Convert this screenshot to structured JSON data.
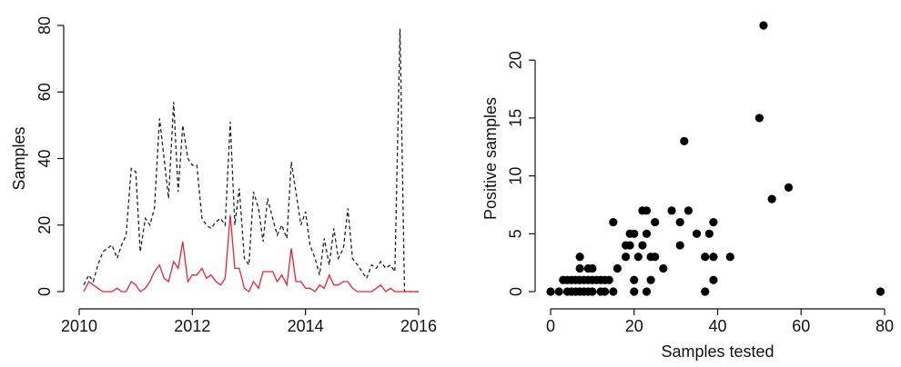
{
  "chart_data": [
    {
      "type": "line",
      "ylabel": "Samples",
      "xlim": [
        2010,
        2016
      ],
      "xticks": [
        2010,
        2012,
        2014,
        2016
      ],
      "ylim": [
        0,
        80
      ],
      "yticks": [
        0,
        20,
        40,
        60,
        80
      ],
      "x": [
        2010.08,
        2010.17,
        2010.25,
        2010.33,
        2010.42,
        2010.5,
        2010.58,
        2010.67,
        2010.75,
        2010.83,
        2010.92,
        2011.0,
        2011.08,
        2011.17,
        2011.25,
        2011.33,
        2011.42,
        2011.5,
        2011.58,
        2011.67,
        2011.75,
        2011.83,
        2011.92,
        2012.0,
        2012.08,
        2012.17,
        2012.25,
        2012.33,
        2012.42,
        2012.5,
        2012.58,
        2012.67,
        2012.75,
        2012.83,
        2012.92,
        2013.0,
        2013.08,
        2013.17,
        2013.25,
        2013.33,
        2013.42,
        2013.5,
        2013.58,
        2013.67,
        2013.75,
        2013.83,
        2013.92,
        2014.0,
        2014.08,
        2014.17,
        2014.25,
        2014.33,
        2014.42,
        2014.5,
        2014.58,
        2014.67,
        2014.75,
        2014.83,
        2014.92,
        2015.0,
        2015.08,
        2015.17,
        2015.25,
        2015.33,
        2015.42,
        2015.5,
        2015.58,
        2015.67,
        2015.75,
        2015.83,
        2015.92,
        2016.0
      ],
      "series": [
        {
          "color": "#222222",
          "linestyle": "dashed",
          "values": [
            2,
            5,
            3,
            8,
            12,
            13,
            14,
            10,
            14,
            17,
            37,
            36,
            12,
            22,
            20,
            25,
            52,
            40,
            28,
            57,
            30,
            50,
            40,
            38,
            38,
            22,
            20,
            19,
            21,
            22,
            20,
            51,
            20,
            31,
            10,
            8,
            30,
            25,
            15,
            28,
            22,
            17,
            20,
            16,
            39,
            30,
            20,
            24,
            14,
            10,
            5,
            16,
            8,
            19,
            10,
            13,
            25,
            10,
            8,
            6,
            4,
            8,
            7,
            9,
            7,
            8,
            6,
            79,
            0,
            0,
            0,
            0
          ]
        },
        {
          "color": "#ee2233",
          "linestyle": "solid",
          "values": [
            0,
            3,
            2,
            1,
            0,
            0,
            0,
            1,
            0,
            0,
            3,
            2,
            0,
            1,
            3,
            6,
            8,
            4,
            3,
            9,
            7,
            15,
            3,
            5,
            5,
            7,
            4,
            5,
            3,
            2,
            4,
            23,
            7,
            7,
            1,
            0,
            3,
            1,
            6,
            6,
            6,
            3,
            5,
            2,
            13,
            3,
            3,
            1,
            1,
            0,
            2,
            1,
            5,
            2,
            2,
            3,
            3,
            1,
            0,
            0,
            0,
            0,
            1,
            2,
            0,
            1,
            0,
            0,
            0,
            0,
            0,
            0
          ]
        }
      ]
    },
    {
      "type": "scatter",
      "xlabel": "Samples tested",
      "ylabel": "Positive samples",
      "xlim": [
        0,
        80
      ],
      "xticks": [
        0,
        20,
        40,
        60,
        80
      ],
      "ylim": [
        0,
        23
      ],
      "yticks": [
        0,
        5,
        10,
        15,
        20
      ],
      "color": "#000000",
      "x": [
        0,
        2,
        4,
        5,
        6,
        7,
        8,
        9,
        10,
        12,
        13,
        15,
        3,
        4,
        5,
        6,
        7,
        8,
        9,
        10,
        11,
        12,
        13,
        14,
        7,
        9,
        10,
        7,
        16,
        15,
        18,
        19,
        20,
        18,
        19,
        20,
        20,
        21,
        22,
        23,
        22,
        23,
        24,
        25,
        24,
        23,
        25,
        27,
        29,
        31,
        31,
        32,
        33,
        35,
        37,
        38,
        39,
        39,
        37,
        39,
        43,
        50,
        51,
        53,
        57,
        79
      ],
      "values": [
        0,
        0,
        0,
        0,
        0,
        0,
        0,
        0,
        0,
        0,
        0,
        0,
        1,
        1,
        1,
        1,
        1,
        1,
        1,
        1,
        1,
        1,
        1,
        1,
        2,
        2,
        2,
        3,
        2,
        6,
        4,
        5,
        5,
        3,
        4,
        1,
        0,
        3,
        7,
        7,
        4,
        5,
        3,
        6,
        1,
        0,
        3,
        2,
        7,
        6,
        4,
        13,
        7,
        5,
        3,
        5,
        6,
        3,
        0,
        1,
        3,
        15,
        23,
        8,
        9,
        0
      ]
    }
  ]
}
